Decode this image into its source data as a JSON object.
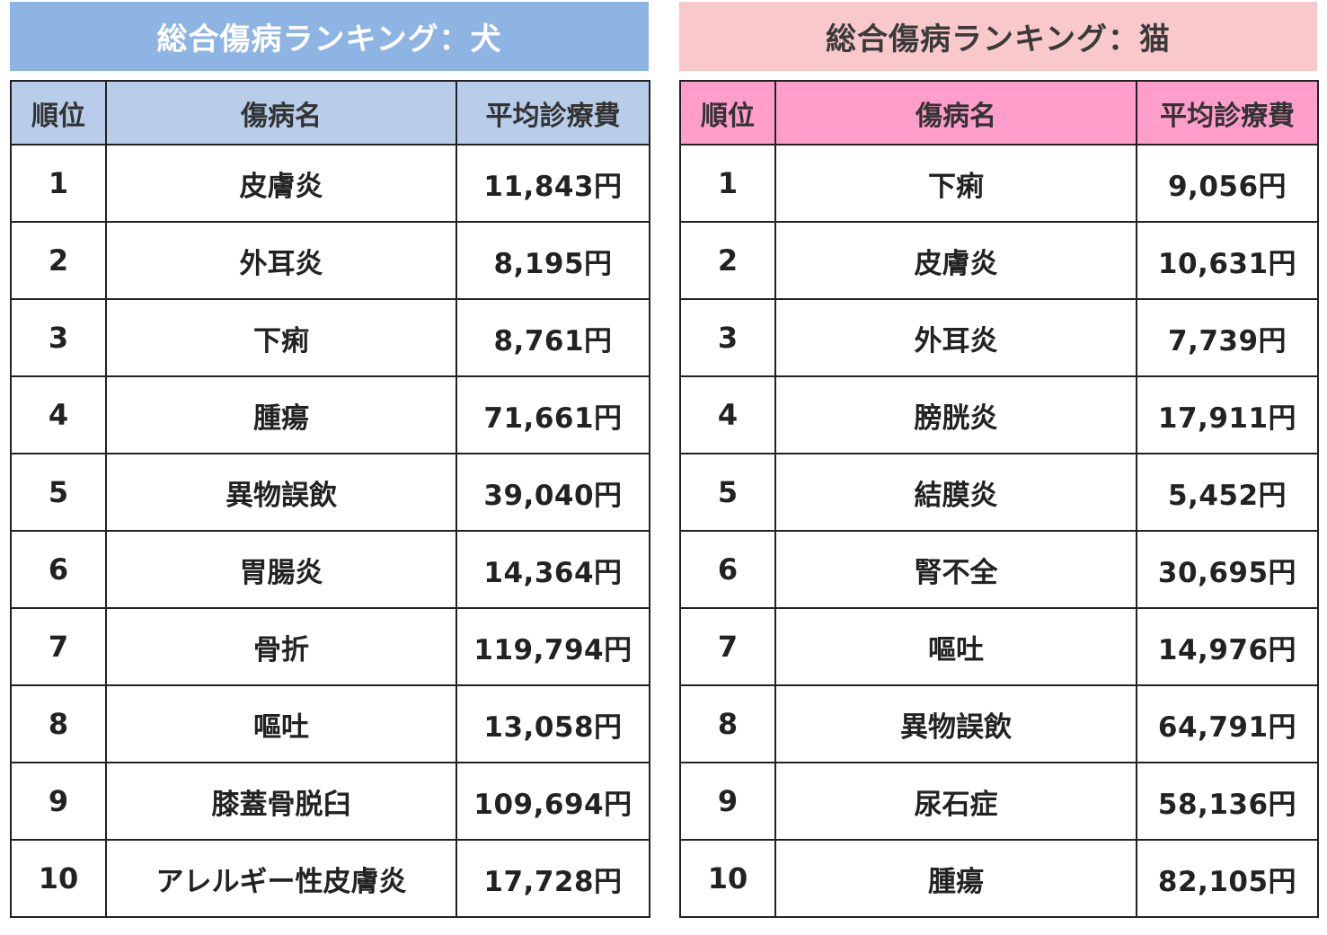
{
  "dog": {
    "title": "総合傷病ランキング：犬",
    "headers": {
      "rank": "順位",
      "name": "傷病名",
      "cost": "平均診療費"
    },
    "rows": [
      {
        "rank": "1",
        "name": "皮膚炎",
        "cost": "11,843円"
      },
      {
        "rank": "2",
        "name": "外耳炎",
        "cost": "8,195円"
      },
      {
        "rank": "3",
        "name": "下痢",
        "cost": "8,761円"
      },
      {
        "rank": "4",
        "name": "腫瘍",
        "cost": "71,661円"
      },
      {
        "rank": "5",
        "name": "異物誤飲",
        "cost": "39,040円"
      },
      {
        "rank": "6",
        "name": "胃腸炎",
        "cost": "14,364円"
      },
      {
        "rank": "7",
        "name": "骨折",
        "cost": "119,794円"
      },
      {
        "rank": "8",
        "name": "嘔吐",
        "cost": "13,058円"
      },
      {
        "rank": "9",
        "name": "膝蓋骨脱臼",
        "cost": "109,694円"
      },
      {
        "rank": "10",
        "name": "アレルギー性皮膚炎",
        "cost": "17,728円"
      }
    ]
  },
  "cat": {
    "title": "総合傷病ランキング：猫",
    "headers": {
      "rank": "順位",
      "name": "傷病名",
      "cost": "平均診療費"
    },
    "rows": [
      {
        "rank": "1",
        "name": "下痢",
        "cost": "9,056円"
      },
      {
        "rank": "2",
        "name": "皮膚炎",
        "cost": "10,631円"
      },
      {
        "rank": "3",
        "name": "外耳炎",
        "cost": "7,739円"
      },
      {
        "rank": "4",
        "name": "膀胱炎",
        "cost": "17,911円"
      },
      {
        "rank": "5",
        "name": "結膜炎",
        "cost": "5,452円"
      },
      {
        "rank": "6",
        "name": "腎不全",
        "cost": "30,695円"
      },
      {
        "rank": "7",
        "name": "嘔吐",
        "cost": "14,976円"
      },
      {
        "rank": "8",
        "name": "異物誤飲",
        "cost": "64,791円"
      },
      {
        "rank": "9",
        "name": "尿石症",
        "cost": "58,136円"
      },
      {
        "rank": "10",
        "name": "腫瘍",
        "cost": "82,105円"
      }
    ]
  },
  "colors": {
    "dog_title_bg": "#8eb4e3",
    "dog_header_bg": "#b8cde9",
    "cat_title_bg": "#f9c8cb",
    "cat_header_bg": "#ff9dcb"
  }
}
